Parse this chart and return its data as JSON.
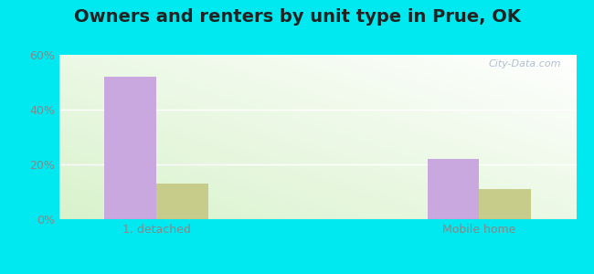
{
  "title": "Owners and renters by unit type in Prue, OK",
  "categories": [
    "1, detached",
    "Mobile home"
  ],
  "owner_values": [
    52,
    22
  ],
  "renter_values": [
    13,
    11
  ],
  "owner_color": "#c9a8e0",
  "renter_color": "#c8cc8a",
  "ylim": [
    0,
    60
  ],
  "yticks": [
    0,
    20,
    40,
    60
  ],
  "ytick_labels": [
    "0%",
    "20%",
    "40%",
    "60%"
  ],
  "bar_width": 0.32,
  "outer_bg": "#00e8f0",
  "watermark": "City-Data.com",
  "title_fontsize": 14,
  "axis_fontsize": 9,
  "legend_fontsize": 9,
  "tick_color": "#888888",
  "grid_color": "#dddddd"
}
